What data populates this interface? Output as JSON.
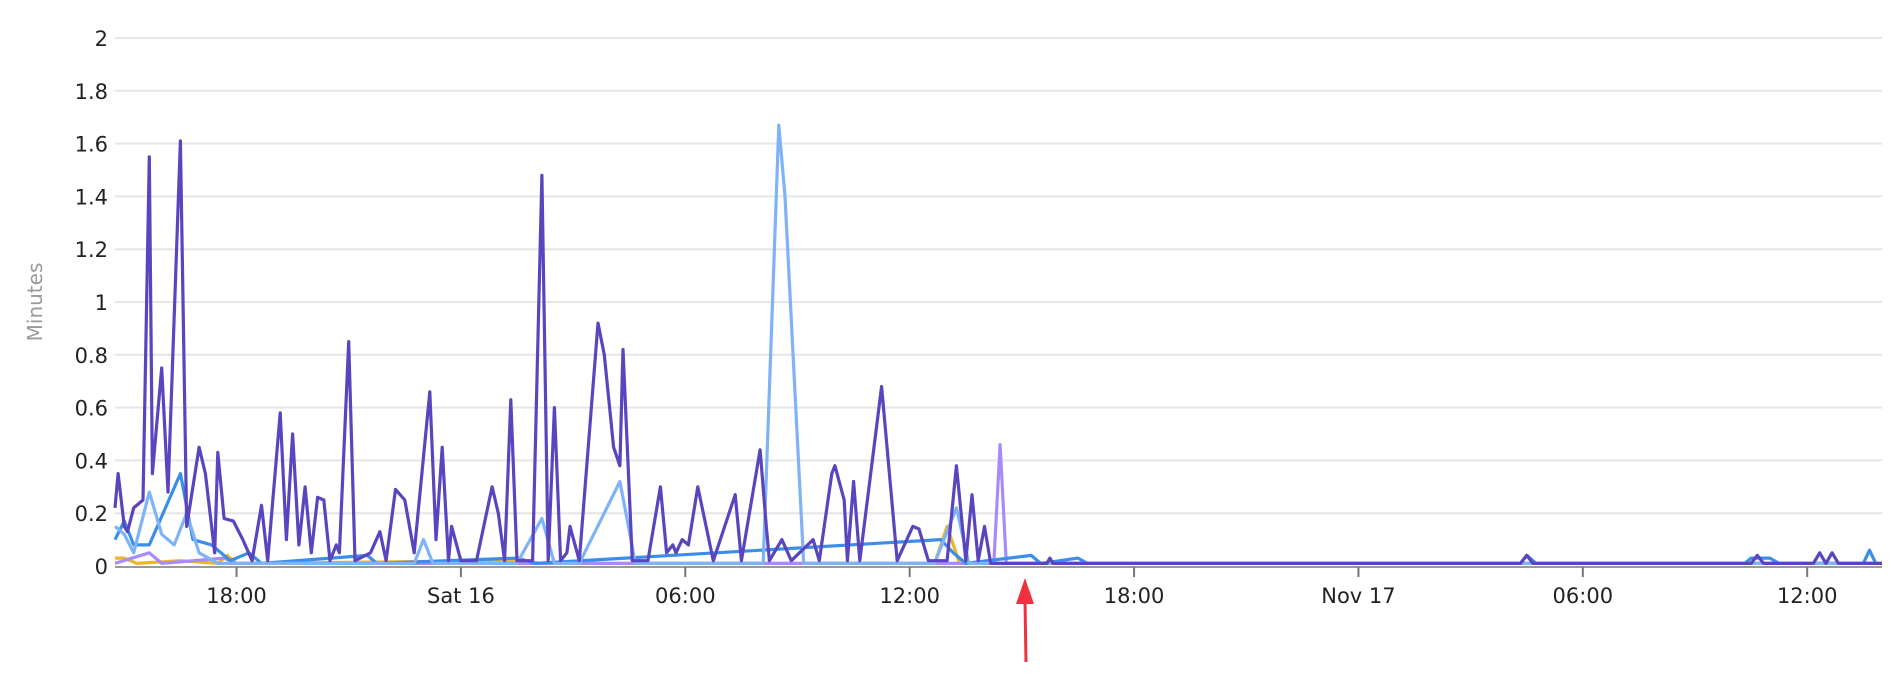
{
  "chart_data": {
    "type": "line",
    "title": "",
    "xlabel": "",
    "ylabel": "Minutes",
    "ylim": [
      0,
      2
    ],
    "yticks": [
      "0",
      "0.2",
      "0.4",
      "0.6",
      "0.8",
      "1",
      "1.2",
      "1.4",
      "1.6",
      "1.8",
      "2"
    ],
    "xlim": [
      "11-15 14:45",
      "11-17 14:00"
    ],
    "xticks": [
      {
        "at": "11-15 18:00",
        "label": "18:00"
      },
      {
        "at": "11-16 00:00",
        "label": "Sat 16"
      },
      {
        "at": "11-16 06:00",
        "label": "06:00"
      },
      {
        "at": "11-16 12:00",
        "label": "12:00"
      },
      {
        "at": "11-16 18:00",
        "label": "18:00"
      },
      {
        "at": "11-17 00:00",
        "label": "Nov 17"
      },
      {
        "at": "11-17 06:00",
        "label": "06:00"
      },
      {
        "at": "11-17 12:00",
        "label": "12:00"
      }
    ],
    "grid": true,
    "legend": "none",
    "annotation": {
      "type": "arrow",
      "at": "11-16 15:05",
      "color": "#f0303f"
    },
    "series": [
      {
        "color": "#f0b429",
        "points": [
          [
            "11-15 14:45",
            0.03
          ],
          [
            "11-15 15:00",
            0.03
          ],
          [
            "11-15 15:20",
            0.01
          ],
          [
            "11-15 16:30",
            0.02
          ],
          [
            "11-15 17:30",
            0.01
          ],
          [
            "11-15 17:45",
            0.04
          ],
          [
            "11-15 18:00",
            0.01
          ],
          [
            "11-16 01:30",
            0.02
          ],
          [
            "11-16 02:10",
            0.01
          ],
          [
            "11-16 12:40",
            0.01
          ],
          [
            "11-16 13:00",
            0.15
          ],
          [
            "11-16 13:20",
            0.01
          ],
          [
            "11-17 14:00",
            0.01
          ]
        ]
      },
      {
        "color": "#a78bfa",
        "points": [
          [
            "11-15 14:45",
            0.01
          ],
          [
            "11-15 15:40",
            0.05
          ],
          [
            "11-15 16:00",
            0.01
          ],
          [
            "11-15 17:40",
            0.03
          ],
          [
            "11-15 18:00",
            0.01
          ],
          [
            "11-16 14:15",
            0.01
          ],
          [
            "11-16 14:25",
            0.46
          ],
          [
            "11-16 14:35",
            0.01
          ],
          [
            "11-17 14:00",
            0.01
          ]
        ]
      },
      {
        "color": "#3b8ee8",
        "points": [
          [
            "11-15 14:45",
            0.1
          ],
          [
            "11-15 15:00",
            0.17
          ],
          [
            "11-15 15:15",
            0.08
          ],
          [
            "11-15 15:40",
            0.08
          ],
          [
            "11-15 16:30",
            0.35
          ],
          [
            "11-15 16:50",
            0.1
          ],
          [
            "11-15 17:20",
            0.08
          ],
          [
            "11-15 17:50",
            0.02
          ],
          [
            "11-15 18:20",
            0.05
          ],
          [
            "11-15 18:40",
            0.01
          ],
          [
            "11-15 21:30",
            0.04
          ],
          [
            "11-15 21:45",
            0.01
          ],
          [
            "11-16 01:30",
            0.03
          ],
          [
            "11-16 02:00",
            0.01
          ],
          [
            "11-16 12:50",
            0.1
          ],
          [
            "11-16 13:10",
            0.05
          ],
          [
            "11-16 13:30",
            0.01
          ],
          [
            "11-16 15:15",
            0.04
          ],
          [
            "11-16 15:30",
            0.01
          ],
          [
            "11-16 16:30",
            0.03
          ],
          [
            "11-16 16:45",
            0.01
          ],
          [
            "11-17 04:20",
            0.01
          ],
          [
            "11-17 04:30",
            0.04
          ],
          [
            "11-17 04:45",
            0.01
          ],
          [
            "11-17 10:20",
            0.01
          ],
          [
            "11-17 10:30",
            0.03
          ],
          [
            "11-17 11:00",
            0.03
          ],
          [
            "11-17 11:15",
            0.01
          ],
          [
            "11-17 13:30",
            0.01
          ],
          [
            "11-17 13:40",
            0.06
          ],
          [
            "11-17 13:50",
            0.01
          ],
          [
            "11-17 14:00",
            0.01
          ]
        ]
      },
      {
        "color": "#7eb3f7",
        "points": [
          [
            "11-15 14:45",
            0.15
          ],
          [
            "11-15 15:00",
            0.12
          ],
          [
            "11-15 15:15",
            0.05
          ],
          [
            "11-15 15:40",
            0.28
          ],
          [
            "11-15 16:00",
            0.12
          ],
          [
            "11-15 16:20",
            0.08
          ],
          [
            "11-15 16:40",
            0.2
          ],
          [
            "11-15 17:00",
            0.05
          ],
          [
            "11-15 17:30",
            0.01
          ],
          [
            "11-15 22:45",
            0.01
          ],
          [
            "11-15 23:00",
            0.1
          ],
          [
            "11-15 23:15",
            0.01
          ],
          [
            "11-16 01:30",
            0.01
          ],
          [
            "11-16 02:10",
            0.18
          ],
          [
            "11-16 02:30",
            0.01
          ],
          [
            "11-16 03:10",
            0.01
          ],
          [
            "11-16 04:15",
            0.32
          ],
          [
            "11-16 04:40",
            0.01
          ],
          [
            "11-16 08:05",
            0.01
          ],
          [
            "11-16 08:30",
            1.67
          ],
          [
            "11-16 08:40",
            1.4
          ],
          [
            "11-16 09:10",
            0.01
          ],
          [
            "11-16 12:40",
            0.01
          ],
          [
            "11-16 13:15",
            0.22
          ],
          [
            "11-16 13:35",
            0.01
          ],
          [
            "11-17 14:00",
            0.01
          ]
        ]
      },
      {
        "color": "#5a45bf",
        "points": [
          [
            "11-15 14:45",
            0.22
          ],
          [
            "11-15 14:50",
            0.35
          ],
          [
            "11-15 15:00",
            0.15
          ],
          [
            "11-15 15:05",
            0.13
          ],
          [
            "11-15 15:15",
            0.22
          ],
          [
            "11-15 15:30",
            0.25
          ],
          [
            "11-15 15:40",
            1.55
          ],
          [
            "11-15 15:45",
            0.35
          ],
          [
            "11-15 16:00",
            0.75
          ],
          [
            "11-15 16:10",
            0.28
          ],
          [
            "11-15 16:30",
            1.61
          ],
          [
            "11-15 16:40",
            0.15
          ],
          [
            "11-15 17:00",
            0.45
          ],
          [
            "11-15 17:10",
            0.35
          ],
          [
            "11-15 17:25",
            0.05
          ],
          [
            "11-15 17:30",
            0.43
          ],
          [
            "11-15 17:40",
            0.18
          ],
          [
            "11-15 17:55",
            0.17
          ],
          [
            "11-15 18:10",
            0.1
          ],
          [
            "11-15 18:25",
            0.02
          ],
          [
            "11-15 18:40",
            0.23
          ],
          [
            "11-15 18:50",
            0.02
          ],
          [
            "11-15 19:10",
            0.58
          ],
          [
            "11-15 19:20",
            0.1
          ],
          [
            "11-15 19:30",
            0.5
          ],
          [
            "11-15 19:40",
            0.08
          ],
          [
            "11-15 19:50",
            0.3
          ],
          [
            "11-15 20:00",
            0.05
          ],
          [
            "11-15 20:10",
            0.26
          ],
          [
            "11-15 20:20",
            0.25
          ],
          [
            "11-15 20:30",
            0.02
          ],
          [
            "11-15 20:40",
            0.08
          ],
          [
            "11-15 20:45",
            0.05
          ],
          [
            "11-15 21:00",
            0.85
          ],
          [
            "11-15 21:10",
            0.02
          ],
          [
            "11-15 21:35",
            0.05
          ],
          [
            "11-15 21:50",
            0.13
          ],
          [
            "11-15 22:00",
            0.02
          ],
          [
            "11-15 22:15",
            0.29
          ],
          [
            "11-15 22:30",
            0.25
          ],
          [
            "11-15 22:45",
            0.05
          ],
          [
            "11-15 23:10",
            0.66
          ],
          [
            "11-15 23:20",
            0.1
          ],
          [
            "11-15 23:30",
            0.45
          ],
          [
            "11-15 23:40",
            0.02
          ],
          [
            "11-15 23:45",
            0.15
          ],
          [
            "11-16 00:00",
            0.02
          ],
          [
            "11-16 00:25",
            0.02
          ],
          [
            "11-16 00:50",
            0.3
          ],
          [
            "11-16 01:00",
            0.2
          ],
          [
            "11-16 01:10",
            0.02
          ],
          [
            "11-16 01:20",
            0.63
          ],
          [
            "11-16 01:30",
            0.02
          ],
          [
            "11-16 01:55",
            0.02
          ],
          [
            "11-16 02:10",
            1.48
          ],
          [
            "11-16 02:20",
            0.02
          ],
          [
            "11-16 02:30",
            0.6
          ],
          [
            "11-16 02:40",
            0.02
          ],
          [
            "11-16 02:50",
            0.05
          ],
          [
            "11-16 02:55",
            0.15
          ],
          [
            "11-16 03:10",
            0.02
          ],
          [
            "11-16 03:40",
            0.92
          ],
          [
            "11-16 03:50",
            0.8
          ],
          [
            "11-16 04:05",
            0.45
          ],
          [
            "11-16 04:15",
            0.38
          ],
          [
            "11-16 04:20",
            0.82
          ],
          [
            "11-16 04:35",
            0.02
          ],
          [
            "11-16 05:00",
            0.02
          ],
          [
            "11-16 05:20",
            0.3
          ],
          [
            "11-16 05:30",
            0.05
          ],
          [
            "11-16 05:40",
            0.08
          ],
          [
            "11-16 05:45",
            0.05
          ],
          [
            "11-16 05:55",
            0.1
          ],
          [
            "11-16 06:05",
            0.08
          ],
          [
            "11-16 06:20",
            0.3
          ],
          [
            "11-16 06:45",
            0.02
          ],
          [
            "11-16 07:20",
            0.27
          ],
          [
            "11-16 07:30",
            0.02
          ],
          [
            "11-16 08:00",
            0.44
          ],
          [
            "11-16 08:10",
            0.15
          ],
          [
            "11-16 08:15",
            0.02
          ],
          [
            "11-16 08:35",
            0.1
          ],
          [
            "11-16 08:50",
            0.02
          ],
          [
            "11-16 09:25",
            0.1
          ],
          [
            "11-16 09:35",
            0.02
          ],
          [
            "11-16 09:55",
            0.35
          ],
          [
            "11-16 10:00",
            0.38
          ],
          [
            "11-16 10:15",
            0.25
          ],
          [
            "11-16 10:20",
            0.02
          ],
          [
            "11-16 10:30",
            0.32
          ],
          [
            "11-16 10:40",
            0.02
          ],
          [
            "11-16 11:15",
            0.68
          ],
          [
            "11-16 11:40",
            0.02
          ],
          [
            "11-16 12:05",
            0.15
          ],
          [
            "11-16 12:15",
            0.14
          ],
          [
            "11-16 12:30",
            0.02
          ],
          [
            "11-16 13:00",
            0.02
          ],
          [
            "11-16 13:15",
            0.38
          ],
          [
            "11-16 13:30",
            0.02
          ],
          [
            "11-16 13:40",
            0.27
          ],
          [
            "11-16 13:50",
            0.02
          ],
          [
            "11-16 14:00",
            0.15
          ],
          [
            "11-16 14:10",
            0.01
          ],
          [
            "11-16 15:40",
            0.01
          ],
          [
            "11-16 15:45",
            0.03
          ],
          [
            "11-16 15:50",
            0.01
          ],
          [
            "11-17 04:20",
            0.01
          ],
          [
            "11-17 04:30",
            0.04
          ],
          [
            "11-17 04:40",
            0.01
          ],
          [
            "11-17 10:30",
            0.01
          ],
          [
            "11-17 10:40",
            0.04
          ],
          [
            "11-17 10:50",
            0.01
          ],
          [
            "11-17 12:10",
            0.01
          ],
          [
            "11-17 12:20",
            0.05
          ],
          [
            "11-17 12:30",
            0.01
          ],
          [
            "11-17 12:40",
            0.05
          ],
          [
            "11-17 12:50",
            0.01
          ],
          [
            "11-17 14:00",
            0.01
          ]
        ]
      }
    ]
  }
}
